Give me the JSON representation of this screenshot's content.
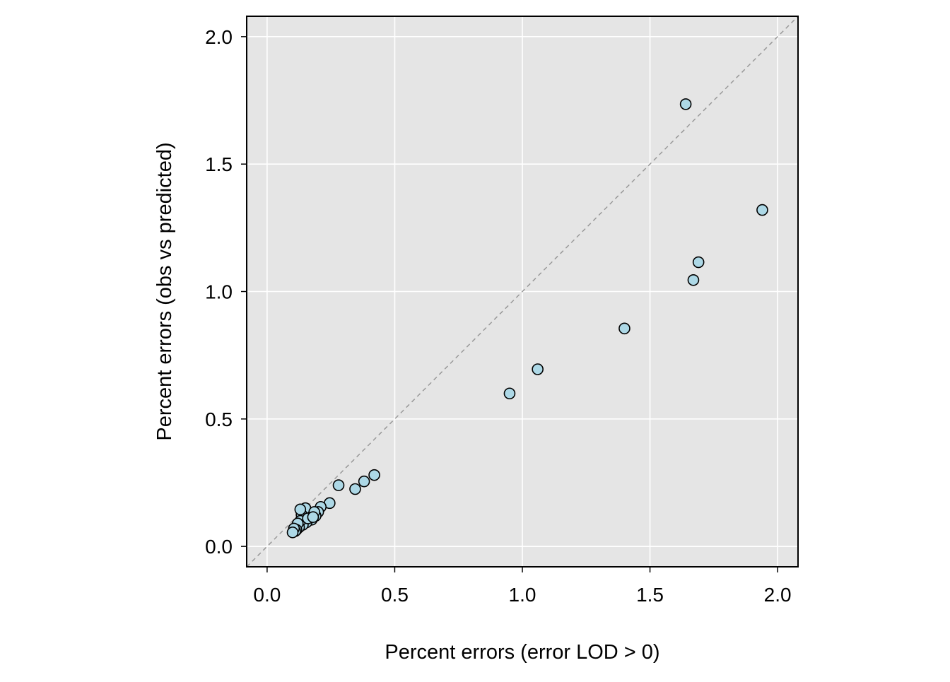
{
  "chart_data": {
    "type": "scatter",
    "title": "",
    "xlabel": "Percent errors (error LOD > 0)",
    "ylabel": "Percent errors (obs vs predicted)",
    "xlim": [
      -0.08,
      2.08
    ],
    "ylim": [
      -0.08,
      2.08
    ],
    "x_ticks": [
      0.0,
      0.5,
      1.0,
      1.5,
      2.0
    ],
    "y_ticks": [
      0.0,
      0.5,
      1.0,
      1.5,
      2.0
    ],
    "x_tick_labels": [
      "0.0",
      "0.5",
      "1.0",
      "1.5",
      "2.0"
    ],
    "y_tick_labels": [
      "0.0",
      "0.5",
      "1.0",
      "1.5",
      "2.0"
    ],
    "grid": true,
    "reference_line": "y = x (dashed)",
    "colors": {
      "panel_background": "#e5e5e5",
      "grid": "#ffffff",
      "point_fill": "#add8e6",
      "point_stroke": "#000000",
      "reference_line": "#999999"
    },
    "points": [
      {
        "x": 1.64,
        "y": 1.735
      },
      {
        "x": 1.94,
        "y": 1.32
      },
      {
        "x": 1.69,
        "y": 1.115
      },
      {
        "x": 1.67,
        "y": 1.045
      },
      {
        "x": 1.4,
        "y": 0.855
      },
      {
        "x": 1.06,
        "y": 0.695
      },
      {
        "x": 0.95,
        "y": 0.6
      },
      {
        "x": 0.42,
        "y": 0.28
      },
      {
        "x": 0.38,
        "y": 0.255
      },
      {
        "x": 0.345,
        "y": 0.225
      },
      {
        "x": 0.28,
        "y": 0.24
      },
      {
        "x": 0.245,
        "y": 0.17
      },
      {
        "x": 0.21,
        "y": 0.155
      },
      {
        "x": 0.2,
        "y": 0.135
      },
      {
        "x": 0.19,
        "y": 0.12
      },
      {
        "x": 0.175,
        "y": 0.105
      },
      {
        "x": 0.165,
        "y": 0.13
      },
      {
        "x": 0.155,
        "y": 0.095
      },
      {
        "x": 0.15,
        "y": 0.15
      },
      {
        "x": 0.145,
        "y": 0.11
      },
      {
        "x": 0.14,
        "y": 0.085
      },
      {
        "x": 0.135,
        "y": 0.125
      },
      {
        "x": 0.13,
        "y": 0.145
      },
      {
        "x": 0.13,
        "y": 0.1
      },
      {
        "x": 0.125,
        "y": 0.075
      },
      {
        "x": 0.12,
        "y": 0.09
      },
      {
        "x": 0.115,
        "y": 0.065
      },
      {
        "x": 0.11,
        "y": 0.06
      },
      {
        "x": 0.105,
        "y": 0.07
      },
      {
        "x": 0.1,
        "y": 0.055
      },
      {
        "x": 0.16,
        "y": 0.11
      },
      {
        "x": 0.185,
        "y": 0.135
      },
      {
        "x": 0.18,
        "y": 0.115
      }
    ]
  }
}
